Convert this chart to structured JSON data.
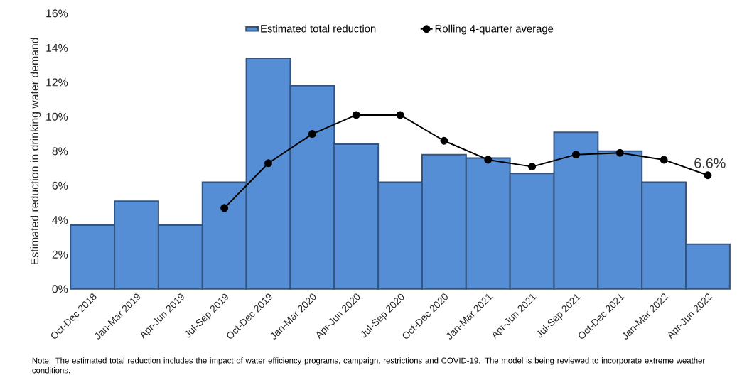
{
  "chart_data": {
    "type": "bar",
    "ylabel": "Estimated reduction in drinking water demand",
    "categories": [
      "Oct-Dec 2018",
      "Jan-Mar 2019",
      "Apr-Jun 2019",
      "Jul-Sep 2019",
      "Oct-Dec 2019",
      "Jan-Mar 2020",
      "Apr-Jun 2020",
      "Jul-Sep 2020",
      "Oct-Dec 2020",
      "Jan-Mar 2021",
      "Apr-Jun 2021",
      "Jul-Sep 2021",
      "Oct-Dec 2021",
      "Jan-Mar 2022",
      "Apr-Jun 2022"
    ],
    "series": [
      {
        "name": "Estimated total reduction",
        "color": "#558ed5",
        "values": [
          3.7,
          5.1,
          3.7,
          6.2,
          13.4,
          11.8,
          8.4,
          6.2,
          7.8,
          7.6,
          6.7,
          9.1,
          8.0,
          6.2,
          2.6
        ]
      },
      {
        "name": "Rolling 4-quarter average",
        "type": "line",
        "color": "#000000",
        "marker": "circle",
        "values": [
          null,
          null,
          null,
          4.7,
          7.3,
          9.0,
          10.1,
          10.1,
          8.6,
          7.5,
          7.1,
          7.8,
          7.9,
          7.5,
          6.6
        ]
      }
    ],
    "ylim": [
      0,
      16
    ],
    "yticks": [
      {
        "value": 0,
        "label": "0%"
      },
      {
        "value": 2,
        "label": "2%"
      },
      {
        "value": 4,
        "label": "4%"
      },
      {
        "value": 6,
        "label": "6%"
      },
      {
        "value": 8,
        "label": "8%"
      },
      {
        "value": 10,
        "label": "10%"
      },
      {
        "value": 12,
        "label": "12%"
      },
      {
        "value": 14,
        "label": "14%"
      },
      {
        "value": 16,
        "label": "16%"
      }
    ],
    "grid": false,
    "legend": "top",
    "annotations": [
      {
        "text": "6.6%",
        "x": "Apr-Jun 2022",
        "y": 6.6
      },
      "Note:  The estimated total reduction includes the impact of water efficiency programs, campaign, restrictions and COVID-19. The model is being reviewed to incorporate extreme weather conditions."
    ]
  }
}
